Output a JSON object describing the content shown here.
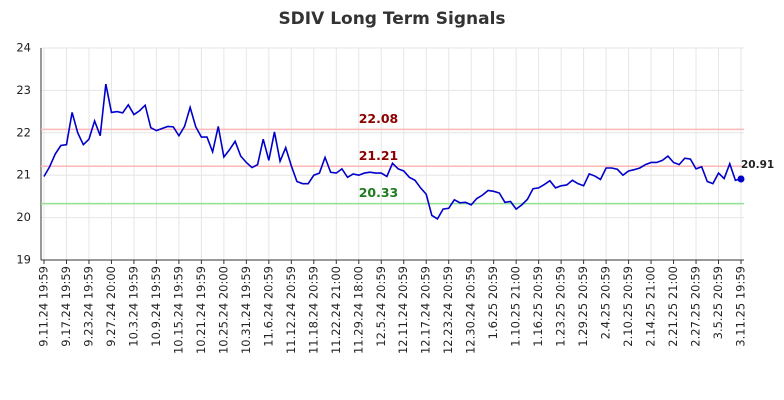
{
  "chart_data": {
    "type": "line",
    "title": "SDIV Long Term Signals",
    "categories": [
      "9.11.24 19:59",
      null,
      null,
      null,
      "9.17.24 19:59",
      null,
      null,
      null,
      "9.23.24 19:59",
      null,
      null,
      null,
      "9.27.24 20:00",
      null,
      null,
      null,
      "10.3.24 19:59",
      null,
      null,
      null,
      "10.9.24 19:59",
      null,
      null,
      null,
      "10.15.24 19:59",
      null,
      null,
      null,
      "10.21.24 19:59",
      null,
      null,
      null,
      "10.25.24 20:00",
      null,
      null,
      null,
      "10.31.24 19:59",
      null,
      null,
      null,
      "11.6.24 20:59",
      null,
      null,
      null,
      "11.12.24 20:59",
      null,
      null,
      null,
      "11.18.24 20:59",
      null,
      null,
      null,
      "11.22.24 21:00",
      null,
      null,
      null,
      "11.29.24 18:00",
      null,
      null,
      null,
      "12.5.24 20:59",
      null,
      null,
      null,
      "12.11.24 20:59",
      null,
      null,
      null,
      "12.17.24 20:59",
      null,
      null,
      null,
      "12.23.24 20:59",
      null,
      null,
      null,
      "12.30.24 20:59",
      null,
      null,
      null,
      "1.6.25 20:59",
      null,
      null,
      null,
      "1.10.25 21:00",
      null,
      null,
      null,
      "1.16.25 20:59",
      null,
      null,
      null,
      "1.23.25 20:59",
      null,
      null,
      null,
      "1.29.25 20:59",
      null,
      null,
      null,
      "2.4.25 20:59",
      null,
      null,
      null,
      "2.10.25 20:59",
      null,
      null,
      null,
      "2.14.25 21:00",
      null,
      null,
      null,
      "2.21.25 21:00",
      null,
      null,
      null,
      "2.27.25 20:59",
      null,
      null,
      null,
      "3.5.25 20:59",
      null,
      null,
      null,
      "3.11.25 19:59"
    ],
    "series": [
      {
        "color": "#0000cc",
        "values": [
          20.97,
          21.2,
          21.5,
          21.7,
          21.72,
          22.48,
          22.0,
          21.72,
          21.85,
          22.28,
          21.93,
          23.15,
          22.48,
          22.5,
          22.47,
          22.66,
          22.43,
          22.52,
          22.65,
          22.12,
          22.05,
          22.1,
          22.15,
          22.14,
          21.93,
          22.15,
          22.6,
          22.14,
          21.9,
          21.9,
          21.55,
          22.15,
          21.43,
          21.6,
          21.8,
          21.45,
          21.3,
          21.18,
          21.25,
          21.85,
          21.35,
          22.02,
          21.33,
          21.65,
          21.22,
          20.85,
          20.8,
          20.8,
          21.0,
          21.05,
          21.42,
          21.07,
          21.05,
          21.15,
          20.95,
          21.03,
          21.0,
          21.05,
          21.07,
          21.05,
          21.05,
          20.97,
          21.28,
          21.15,
          21.1,
          20.95,
          20.88,
          20.7,
          20.55,
          20.05,
          19.97,
          20.2,
          20.22,
          20.42,
          20.35,
          20.36,
          20.3,
          20.45,
          20.53,
          20.64,
          20.62,
          20.58,
          20.36,
          20.38,
          20.2,
          20.3,
          20.43,
          20.68,
          20.7,
          20.78,
          20.87,
          20.7,
          20.75,
          20.77,
          20.88,
          20.8,
          20.75,
          21.03,
          20.98,
          20.9,
          21.17,
          21.17,
          21.14,
          21.0,
          21.1,
          21.13,
          21.17,
          21.25,
          21.3,
          21.3,
          21.35,
          21.45,
          21.3,
          21.25,
          21.4,
          21.38,
          21.15,
          21.2,
          20.85,
          20.8,
          21.05,
          20.92,
          21.27,
          20.88,
          20.91
        ]
      }
    ],
    "hlines": [
      {
        "value": 22.08,
        "color": "#ffb8b8",
        "label_color": "#8b0000"
      },
      {
        "value": 21.21,
        "color": "#ffb8b8",
        "label_color": "#8b0000"
      },
      {
        "value": 20.33,
        "color": "#90e090",
        "label_color": "#1e7b1e"
      }
    ],
    "ylim": [
      19,
      24
    ],
    "yticks": [
      19,
      20,
      21,
      22,
      23,
      24
    ],
    "grid": true
  }
}
